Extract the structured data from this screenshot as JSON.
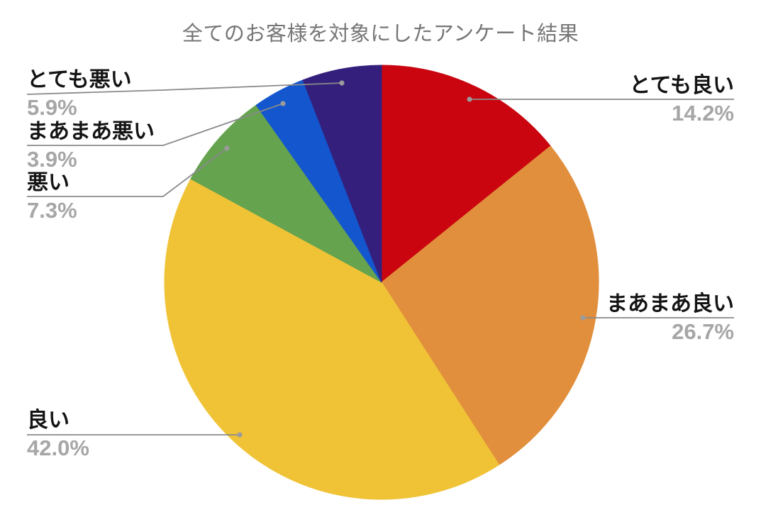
{
  "page": {
    "background_color": "#FFFFFF"
  },
  "chart_data": {
    "type": "pie",
    "title": "全てのお客様を対象にしたアンケート結果",
    "title_color": "#767676",
    "legend_position": "callout-labels",
    "start_angle_deg": 0,
    "direction": "clockwise",
    "label_text_color": "#141414",
    "pct_text_color": "#A6A6A6",
    "leader_line_color": "#8A8A8A",
    "leader_dot_color": "#9B9B9B",
    "slices": [
      {
        "label": "とても良い",
        "value_pct": 14.2,
        "pct_text": "14.2%",
        "color": "#CA050F"
      },
      {
        "label": "まあまあ良い",
        "value_pct": 26.7,
        "pct_text": "26.7%",
        "color": "#E18F3C"
      },
      {
        "label": "良い",
        "value_pct": 42.0,
        "pct_text": "42.0%",
        "color": "#F0C337"
      },
      {
        "label": "悪い",
        "value_pct": 7.3,
        "pct_text": "7.3%",
        "color": "#65A34F"
      },
      {
        "label": "まあまあ悪い",
        "value_pct": 3.9,
        "pct_text": "3.9%",
        "color": "#1456CE"
      },
      {
        "label": "とても悪い",
        "value_pct": 5.9,
        "pct_text": "5.9%",
        "color": "#34207C"
      }
    ]
  }
}
